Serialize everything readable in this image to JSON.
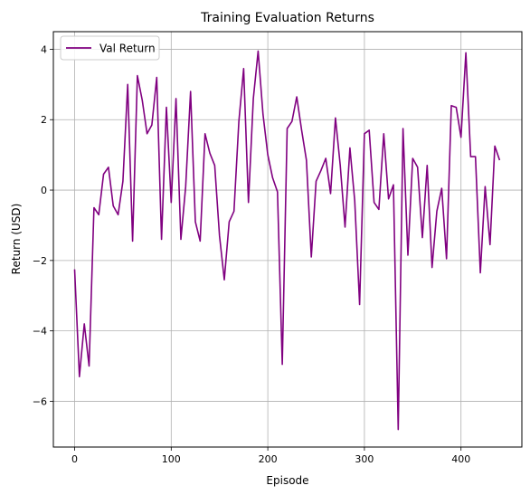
{
  "chart_data": {
    "type": "line",
    "title": "Training Evaluation Returns",
    "xlabel": "Episode",
    "ylabel": "Return (USD)",
    "xlim": [
      -22,
      463
    ],
    "ylim": [
      -7.3,
      4.5
    ],
    "xticks": [
      0,
      100,
      200,
      300,
      400
    ],
    "yticks": [
      -6,
      -4,
      -2,
      0,
      2,
      4
    ],
    "grid": true,
    "legend": "top-left",
    "series": [
      {
        "name": "Val Return",
        "color": "#800080",
        "x": [
          0,
          5,
          10,
          15,
          20,
          25,
          30,
          35,
          40,
          45,
          50,
          55,
          60,
          65,
          70,
          75,
          80,
          85,
          90,
          95,
          100,
          105,
          110,
          115,
          120,
          125,
          130,
          135,
          140,
          145,
          150,
          155,
          160,
          165,
          170,
          175,
          180,
          185,
          190,
          195,
          200,
          205,
          210,
          215,
          220,
          225,
          230,
          235,
          240,
          245,
          250,
          255,
          260,
          265,
          270,
          275,
          280,
          285,
          290,
          295,
          300,
          305,
          310,
          315,
          320,
          325,
          330,
          335,
          340,
          345,
          350,
          355,
          360,
          365,
          370,
          375,
          380,
          385,
          390,
          395,
          400,
          405,
          410,
          415,
          420,
          425,
          430,
          435,
          440
        ],
        "y": [
          -2.25,
          -5.3,
          -3.8,
          -5.0,
          -0.5,
          -0.7,
          0.45,
          0.65,
          -0.45,
          -0.7,
          0.25,
          3.0,
          -1.45,
          3.25,
          2.55,
          1.6,
          1.85,
          3.2,
          -1.4,
          2.35,
          -0.35,
          2.6,
          -1.4,
          0.1,
          2.8,
          -0.9,
          -1.45,
          1.6,
          1.05,
          0.7,
          -1.3,
          -2.55,
          -0.9,
          -0.6,
          1.95,
          3.45,
          -0.35,
          2.6,
          3.95,
          2.15,
          1.0,
          0.35,
          -0.05,
          -4.95,
          1.75,
          1.95,
          2.65,
          1.7,
          0.85,
          -1.9,
          0.25,
          0.55,
          0.9,
          -0.1,
          2.05,
          0.7,
          -1.05,
          1.2,
          -0.3,
          -3.25,
          1.6,
          1.7,
          -0.35,
          -0.55,
          1.6,
          -0.25,
          0.15,
          -6.8,
          1.75,
          -1.85,
          0.9,
          0.65,
          -1.35,
          0.7,
          -2.2,
          -0.6,
          0.05,
          -1.95,
          2.4,
          2.35,
          1.5,
          3.9,
          0.95,
          0.95,
          -2.35,
          0.1,
          -1.55,
          1.25,
          0.85
        ]
      }
    ]
  }
}
